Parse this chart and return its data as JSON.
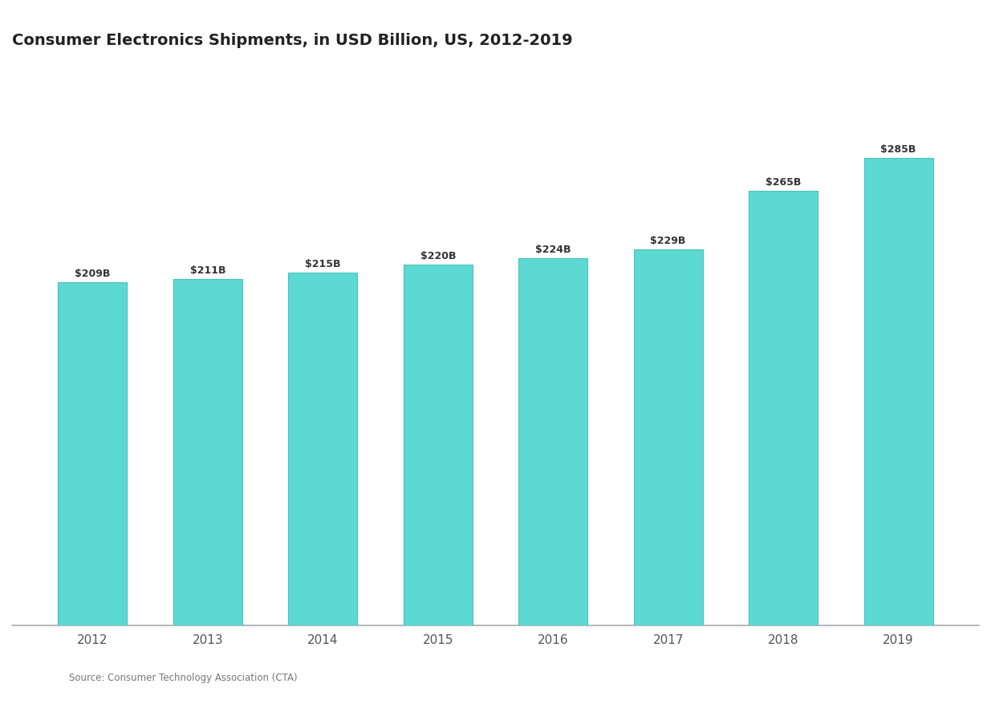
{
  "title": "Consumer Electronics Shipments, in USD Billion, US, 2012-2019",
  "years": [
    "2012",
    "2013",
    "2014",
    "2015",
    "2016",
    "2017",
    "2018",
    "2019"
  ],
  "values": [
    209,
    211,
    215,
    220,
    224,
    229,
    265,
    285
  ],
  "bar_color": "#5DD9D4",
  "bar_edge_color": "#4ABFBA",
  "background_color": "#ffffff",
  "plot_bg_color": "#ffffff",
  "text_color": "#555555",
  "title_color": "#222222",
  "bar_label_color": "#333333",
  "source_text": "Source: Consumer Technology Association (CTA)",
  "ylim": [
    0,
    340
  ],
  "bar_width": 0.6
}
